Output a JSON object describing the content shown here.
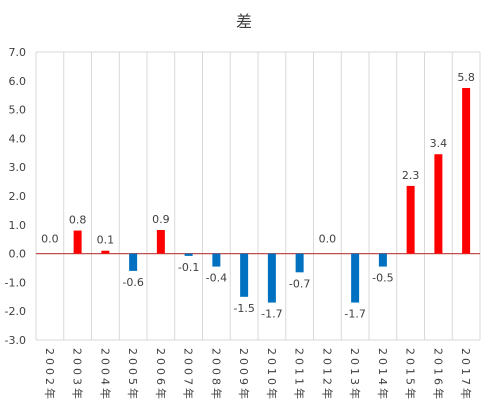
{
  "chart_data": {
    "type": "bar",
    "title": "差",
    "categories": [
      "2002年",
      "2003年",
      "2004年",
      "2005年",
      "2006年",
      "2007年",
      "2008年",
      "2009年",
      "2010年",
      "2011年",
      "2012年",
      "2013年",
      "2014年",
      "2015年",
      "2016年",
      "2017年"
    ],
    "values": [
      0.0,
      0.8,
      0.1,
      -0.6,
      0.9,
      -0.1,
      -0.4,
      -1.5,
      -1.7,
      -0.7,
      0.0,
      -1.7,
      -0.5,
      2.3,
      3.4,
      5.8
    ],
    "data_labels": [
      "0.0",
      "0.8",
      "0.1",
      "-0.6",
      "0.9",
      "-0.1",
      "-0.4",
      "-1.5",
      "-1.7",
      "-0.7",
      "0.0",
      "-1.7",
      "-0.5",
      "2.3",
      "3.4",
      "5.8"
    ],
    "bar_heights": [
      0.0,
      0.8,
      0.1,
      -0.6,
      0.82,
      -0.08,
      -0.45,
      -1.5,
      -1.7,
      -0.65,
      0.0,
      -1.7,
      -0.45,
      2.35,
      3.45,
      5.75
    ],
    "ylim": [
      -3.0,
      7.0
    ],
    "yticks": [
      "-3.0",
      "-2.0",
      "-1.0",
      "0.0",
      "1.0",
      "2.0",
      "3.0",
      "4.0",
      "5.0",
      "6.0",
      "7.0"
    ],
    "xlabel": "",
    "ylabel": "",
    "grid": "vertical",
    "colors": {
      "positive": "#ff0000",
      "negative": "#0070c0",
      "zero_line": "#c0504d",
      "grid": "#d9d9d9",
      "text": "#404040"
    }
  }
}
